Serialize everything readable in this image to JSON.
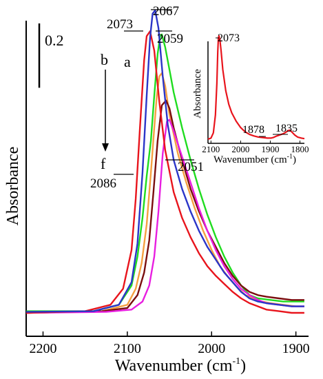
{
  "chart_data": {
    "type": "line",
    "xlabel": "Wavenumber (cm",
    "xlabel_sup": "-1",
    "xlabel_close": ")",
    "ylabel": "Absorbance",
    "x_reversed": true,
    "xlim": [
      2220,
      1885
    ],
    "ylim": [
      0,
      1.0
    ],
    "x_ticks": [
      2200,
      2100,
      2000,
      1900
    ],
    "x_tick_labels": [
      "2200",
      "2100",
      "2000",
      "1900"
    ],
    "scale_bar_label": "0.2",
    "scale_bar_value": 0.2,
    "sequence": {
      "start": "b",
      "end": "f",
      "start_color": "#2b35c8",
      "direction": "down"
    },
    "series": [
      {
        "name": "a",
        "color": "#e8141c",
        "x": [
          2220,
          2150,
          2120,
          2105,
          2095,
          2090,
          2085,
          2080,
          2077,
          2073,
          2068,
          2062,
          2055,
          2045,
          2035,
          2025,
          2015,
          2005,
          1995,
          1985,
          1975,
          1965,
          1955,
          1945,
          1935,
          1920,
          1905,
          1890
        ],
        "y": [
          0.045,
          0.05,
          0.07,
          0.12,
          0.24,
          0.4,
          0.62,
          0.83,
          0.905,
          0.92,
          0.86,
          0.7,
          0.55,
          0.42,
          0.34,
          0.28,
          0.23,
          0.19,
          0.16,
          0.135,
          0.11,
          0.09,
          0.075,
          0.065,
          0.055,
          0.05,
          0.045,
          0.045
        ]
      },
      {
        "name": "b",
        "color": "#2b35c8",
        "x": [
          2220,
          2140,
          2110,
          2095,
          2088,
          2082,
          2077,
          2073,
          2070,
          2067,
          2063,
          2058,
          2052,
          2045,
          2035,
          2025,
          2015,
          2005,
          1995,
          1985,
          1975,
          1965,
          1955,
          1945,
          1935,
          1920,
          1905,
          1890
        ],
        "y": [
          0.048,
          0.05,
          0.07,
          0.14,
          0.26,
          0.48,
          0.72,
          0.9,
          0.975,
          0.985,
          0.93,
          0.78,
          0.63,
          0.52,
          0.43,
          0.36,
          0.3,
          0.25,
          0.21,
          0.17,
          0.14,
          0.11,
          0.09,
          0.08,
          0.075,
          0.07,
          0.065,
          0.065
        ]
      },
      {
        "name": "",
        "color": "#1fdc1f",
        "x": [
          2220,
          2140,
          2110,
          2095,
          2088,
          2082,
          2077,
          2072,
          2068,
          2064,
          2061,
          2059,
          2055,
          2050,
          2045,
          2035,
          2025,
          2015,
          2005,
          1995,
          1985,
          1975,
          1965,
          1955,
          1945,
          1930,
          1915,
          1900,
          1890
        ],
        "y": [
          0.05,
          0.05,
          0.07,
          0.13,
          0.22,
          0.34,
          0.47,
          0.58,
          0.72,
          0.85,
          0.905,
          0.91,
          0.87,
          0.8,
          0.73,
          0.62,
          0.52,
          0.43,
          0.35,
          0.28,
          0.22,
          0.17,
          0.13,
          0.1,
          0.09,
          0.085,
          0.08,
          0.08,
          0.08
        ]
      },
      {
        "name": "",
        "color": "#f5a040",
        "x": [
          2220,
          2130,
          2100,
          2090,
          2083,
          2077,
          2072,
          2068,
          2065,
          2062,
          2059,
          2055,
          2050,
          2040,
          2030,
          2020,
          2010,
          2000,
          1990,
          1980,
          1970,
          1960,
          1950,
          1940,
          1930,
          1915,
          1900,
          1890
        ],
        "y": [
          0.045,
          0.05,
          0.07,
          0.12,
          0.2,
          0.32,
          0.48,
          0.62,
          0.72,
          0.78,
          0.79,
          0.75,
          0.66,
          0.54,
          0.45,
          0.37,
          0.3,
          0.24,
          0.19,
          0.155,
          0.125,
          0.1,
          0.09,
          0.08,
          0.075,
          0.07,
          0.065,
          0.065
        ]
      },
      {
        "name": "",
        "color": "#7a0e0e",
        "x": [
          2220,
          2130,
          2100,
          2088,
          2080,
          2074,
          2069,
          2064,
          2059,
          2054,
          2050,
          2045,
          2035,
          2025,
          2015,
          2005,
          1995,
          1985,
          1975,
          1965,
          1955,
          1945,
          1935,
          1920,
          1905,
          1890
        ],
        "y": [
          0.045,
          0.05,
          0.06,
          0.1,
          0.17,
          0.27,
          0.42,
          0.58,
          0.69,
          0.705,
          0.68,
          0.62,
          0.52,
          0.43,
          0.36,
          0.3,
          0.25,
          0.2,
          0.16,
          0.13,
          0.11,
          0.1,
          0.095,
          0.09,
          0.085,
          0.085
        ]
      },
      {
        "name": "",
        "color": "#e81ee0",
        "x": [
          2220,
          2125,
          2095,
          2082,
          2074,
          2068,
          2063,
          2058,
          2053,
          2050,
          2045,
          2035,
          2025,
          2015,
          2005,
          1995,
          1985,
          1975,
          1965,
          1955,
          1945,
          1935,
          1920,
          1905,
          1890
        ],
        "y": [
          0.045,
          0.048,
          0.055,
          0.08,
          0.13,
          0.22,
          0.36,
          0.54,
          0.64,
          0.645,
          0.61,
          0.53,
          0.45,
          0.37,
          0.3,
          0.24,
          0.19,
          0.15,
          0.12,
          0.1,
          0.085,
          0.075,
          0.07,
          0.065,
          0.065
        ]
      }
    ],
    "annotations": [
      {
        "text": "2073",
        "x": 2073,
        "y": 0.92,
        "side": "left"
      },
      {
        "text": "2067",
        "x": 2067,
        "y": 0.985,
        "side": "right"
      },
      {
        "text": "2059",
        "x": 2059,
        "y": 0.91,
        "side": "right"
      },
      {
        "text": "2051",
        "x": 2051,
        "y": 0.645,
        "side": "right"
      },
      {
        "text": "2086",
        "x": 2086,
        "y": 0.62,
        "side": "left"
      }
    ],
    "inset": {
      "type": "line",
      "ylabel": "Absorbance",
      "xlabel": "Wavenumber (cm",
      "xlabel_sup": "-1",
      "xlabel_close": ")",
      "x_reversed": true,
      "xlim": [
        2110,
        1785
      ],
      "ylim": [
        0,
        1.0
      ],
      "x_ticks": [
        2100,
        2000,
        1900,
        1800
      ],
      "x_tick_labels": [
        "2100",
        "2000",
        "1900",
        "1800"
      ],
      "series": [
        {
          "name": "",
          "color": "#e8141c",
          "x": [
            2110,
            2100,
            2092,
            2085,
            2080,
            2077,
            2075,
            2073,
            2070,
            2066,
            2060,
            2050,
            2040,
            2030,
            2015,
            2000,
            1985,
            1970,
            1955,
            1940,
            1925,
            1910,
            1898,
            1890,
            1878,
            1868,
            1858,
            1848,
            1840,
            1835,
            1828,
            1818,
            1808,
            1795,
            1785
          ],
          "y": [
            0.02,
            0.03,
            0.08,
            0.25,
            0.55,
            0.85,
            0.98,
            1.0,
            0.97,
            0.86,
            0.68,
            0.48,
            0.35,
            0.27,
            0.19,
            0.13,
            0.09,
            0.065,
            0.05,
            0.04,
            0.035,
            0.03,
            0.03,
            0.035,
            0.05,
            0.06,
            0.07,
            0.085,
            0.1,
            0.105,
            0.09,
            0.06,
            0.04,
            0.03,
            0.025
          ]
        }
      ],
      "annotations": [
        {
          "text": "2073",
          "x": 2073,
          "y": 1.0
        },
        {
          "text": "1878",
          "x": 1878,
          "y": 0.05
        },
        {
          "text": "1835",
          "x": 1835,
          "y": 0.105
        }
      ]
    }
  }
}
